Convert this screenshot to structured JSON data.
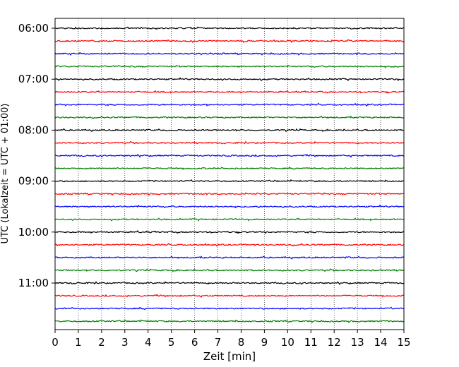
{
  "chart_data": {
    "type": "line",
    "title": "",
    "xlabel": "Zeit  [min]",
    "ylabel": "UTC (Lokalzeit = UTC + 01:00)",
    "xlim": [
      0,
      15
    ],
    "x_ticks": [
      0,
      1,
      2,
      3,
      4,
      5,
      6,
      7,
      8,
      9,
      10,
      11,
      12,
      13,
      14,
      15
    ],
    "grid_x": true,
    "grid_style": "dotted",
    "y_tick_labels": [
      "06:00",
      "07:00",
      "08:00",
      "09:00",
      "10:00",
      "11:00"
    ],
    "trace_interval_min": 15,
    "trace_start": "06:00",
    "trace_count": 24,
    "colors": [
      "#000000",
      "#ff0000",
      "#0000ff",
      "#008000"
    ]
  }
}
